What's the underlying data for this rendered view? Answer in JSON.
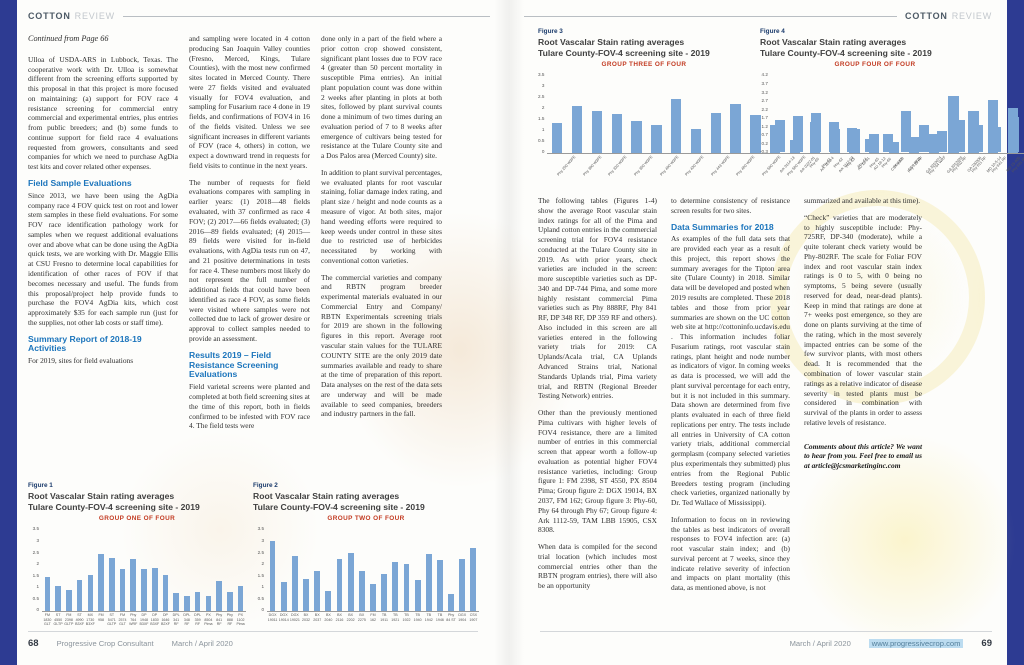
{
  "brand": {
    "bold": "COTTON",
    "light": "REVIEW"
  },
  "left_page": {
    "continued": "Continued from Page 66",
    "col1": {
      "p1": "Ulloa of USDA-ARS in Lubbock, Texas.  The cooperative work with Dr. Ulloa is somewhat different from the screening efforts supported by this proposal in that this project is more focused on maintaining: (a) support for FOV race 4 resistance screening for commercial entry commercial and experimental entries, plus entries from public breeders; and (b) some funds to continue support for field race 4 evaluations requested from growers, consultants and seed companies for which we need to purchase AgDia test kits and cover related other expenses.",
      "h1": "Field Sample Evaluations",
      "p2": "Since 2013, we have been using the AgDia company race 4 FOV quick test on root and lower stem samples in these field evaluations.  For some FOV race identification pathology work for samples when we request additional evaluations over and above what can be done using the AgDia quick tests, we are working with Dr. Maggie Ellis at CSU Fresno to determine local capabilities for identification of other races of FOV if that becomes necessary and useful. The funds from this proposal/project help provide funds to purchase the FOV4 AgDia kits, which cost approximately $35 for each sample run (just for the supplies, not other lab costs or staff time).",
      "h2": "Summary Report of 2018-19 Activities",
      "p3": "For 2019, sites for field evaluations"
    },
    "col2": {
      "p1": "and sampling were located in 4 cotton producing San Joaquin Valley counties  (Fresno, Merced, Kings, Tulare Counties), with the most new confirmed sites located in Merced County. There were 27 fields visited and evaluated visually for FOV4 evaluation, and sampling for Fusarium race 4 done in 19 fields, and confirmations of FOV4 in 16 of the fields visited. Unless we see significant increases in different variants of FOV (race 4, others) in cotton, we expect a downward trend in requests for field visits to continue in the next years.",
      "p2": "The number of requests for field evaluations compares with sampling in earlier years: (1) 2018—48 fields evaluated, with 37 confirmed as race 4 FOV; (2) 2017—66 fields evaluated; (3) 2016—89 fields evaluated; (4) 2015—89 fields were visited for in-field evaluations, with AgDia tests run on 47, and 21 positive determinations in tests for race 4.  These numbers most likely do not represent the full number of additional fields that could have been identified as race 4 FOV, as some fields were visited where samples were not collected due to lack of grower desire or approval to collect samples needed to provide an assessment.",
      "h1": "Results 2019 – Field Resistance Screening Evaluations",
      "p3": "Field varietal screens were planted and completed at both field screening sites at the time of this report, both in fields confirmed to be infested with FOV race 4.  The field tests were"
    },
    "col3": {
      "p1": "done only in a part of the field where a prior cotton crop showed consistent, significant plant losses due to FOV race 4 (greater than 50 percent mortality in susceptible Pima entries). An initial plant population count was done within 2 weeks after planting in plots at both sites, followed by plant survival counts done a minimum of two times during an evaluation period of 7 to 8 weeks after emergence of cultivars being tested for resistance at the Tulare County site and a Dos Palos area (Merced County) site.",
      "p2": "In addition to plant survival percentages, we evaluated plants for root vascular staining, foliar damage index rating, and plant size / height and node counts as a measure of vigor. At both sites, major hand weeding efforts were required to keep weeds under control in these sites due to restricted use of herbicides necessitated by working with conventional cotton varieties.",
      "p3": "The commercial varieties and company and RBTN program breeder experimental materials evaluated in our Commercial Entry and Company/ RBTN Experimentals screening trials for 2019 are shown in the following figures in this report.  Average root vascular stain values for the TULARE COUNTY SITE are the only 2019 date summaries available and ready to share at the time of preparation of this report. Data analyses on the rest of the data sets are underway and will be made available to seed companies, breeders and industry partners in the fall."
    },
    "footer": {
      "page": "68",
      "magazine": "Progressive Crop Consultant",
      "date": "March / April 2020"
    }
  },
  "right_page": {
    "col1": {
      "p1": "The following tables (Figures 1-4) show the average Root vascular stain index ratings for all of the Pima and Upland cotton entries in the commercial screening trial for FOV4 resistance conducted at the Tulare County site in 2019.  As with prior years, check varieties are included in the screen: more susceptible varieties such as DP-340 and DP-744 Pima, and some more highly resistant commercial Pima varieties such as Phy 888RF, Phy 841 RF, DP 348 RF, DP 359 RF and others). Also included in this screen are all varieties entered in the following variety trials for 2019:  CA Uplands/Acala trial, CA Uplands Advanced Strains trial, National Standards Uplands trial, Pima variety trial, and RBTN (Regional Breeder Testing Network) entries.",
      "p2": "Other than the previously mentioned Pima cultivars with higher levels of FOV4 resistance, there are a limited number of entries in this commercial screen that appear worth a follow-up evaluation as potential higher FOV4 resistance varieties, including:  Group figure 1: FM 2398, ST 4550, PX 8504 Pima; Group figure 2: DGX 19014, BX 2037, FM 162; Group figure 3: Phy-60, Phy 64 through Phy 67; Group figure 4: Ark 1112-59, TAM LBB 15905, CSX 8308.",
      "p3": "When data is compiled for the second trial location (which includes most commercial entries other than the RBTN program entries), there will also be an opportunity"
    },
    "col2": {
      "p1": "to determine consistency of resistance screen results for two sites.",
      "h1": "Data Summaries for 2018",
      "p2": "As examples of the full data sets that are provided each year as a result of this project, this report shows the summary averages for the Tipton area site (Tulare County) in 2018. Similar data will be developed and posted when 2019 results are completed.  These 2018 tables and those from prior year summaries are shown on the UC cotton web site at http://cottoninfo.ucdavis.edu .  This information includes foliar Fusarium ratings, root vascular stain ratings, plant height and node number as indicators of vigor.  In coming weeks as data is processed, we will add the plant survival percentage for each entry, but it is not included in this summary. Data shown are determined from five plants evaluated in each of three field replications per entry.  The tests include all entries in University of CA cotton variety trials, additional commercial germplasm (company selected varieties plus experimentals they submitted) plus entries from the Regional Public Breeders testing program (including check varieties, organized nationally by Dr. Ted Wallace of Mississippi).",
      "p3": "Information to focus on in reviewing the tables as best indicators of overall responses to FOV4 infection are: (a) root vascular stain index; and (b) survival percent at 7 weeks, since they indicate relative severity of infection and impacts on plant mortality (this data, as mentioned above, is not"
    },
    "col3": {
      "p1": "summarized and available at this time).",
      "p2": "“Check” varieties that are moderately to highly susceptible include: Phy-725RF, DP-340 (moderate), while a quite tolerant check variety would be Phy-802RF.  The scale for Foliar FOV index and root vascular stain index ratings is 0 to 5, with 0 being no symptoms, 5 being severe (usually reserved for dead, near-dead plants).  Keep in mind that ratings are done at 7+ weeks post emergence, so they are done on plants surviving at the time of the rating, which in the most severely impacted entries  can be some of the few survivor plants, with most others dead. It is recommended that the combination of lower vascular stain ratings as a relative indicator of disease severity in tested plants must be considered in combination with survival of the plants in order to assess relative levels of resistance.",
      "note": "Comments about this article? We want to hear from you. Feel free to email us at article@jcsmarketinginc.com"
    },
    "footer": {
      "date": "March / April 2020",
      "url": "www.progressivecrop.com",
      "page": "69"
    }
  },
  "chart_data": [
    {
      "type": "bar",
      "figure_label": "Figure 1",
      "title": "Root Vascalar Stain rating averages",
      "subtitle": "Tulare County-FOV-4 screening site - 2019",
      "group_label": "GROUP ONE OF FOUR",
      "ylim": [
        0,
        3.5
      ],
      "yticks": [
        "3.5",
        "3",
        "2.5",
        "2",
        "1.5",
        "1",
        "0.5",
        "0"
      ],
      "label_orientation": "horizontal",
      "categories": [
        "FM 1830 GLT",
        "ST 4550 GLTP",
        "FM 2398 GLTP",
        "ST 4990 B3XF",
        "MX 1730 B3XF",
        "FM 958",
        "ST 5471 GLTP",
        "FM 2574 GLT",
        "Phy 764 WRF",
        "DP 1948 B3XF",
        "DP 1830 B3XF",
        "DP 1646 B2XF",
        "DPL 341 RF",
        "DPL 348 RF",
        "DPL 359 RF",
        "PX 8504 Pima",
        "Phy 841 RF",
        "Phy 888 RF",
        "PX 1102 Pima"
      ],
      "values": [
        1.4,
        1.05,
        0.9,
        1.3,
        1.5,
        2.35,
        2.2,
        1.75,
        2.15,
        1.75,
        1.8,
        1.5,
        0.75,
        0.65,
        0.8,
        0.65,
        1.25,
        0.8,
        1.05
      ]
    },
    {
      "type": "bar",
      "figure_label": "Figure 2",
      "title": "Root Vascalar Stain rating averages",
      "subtitle": "Tulare County-FOV-4 screening site - 2019",
      "group_label": "GROUP TWO OF FOUR",
      "ylim": [
        0,
        3.5
      ],
      "yticks": [
        "3.5",
        "3",
        "2.5",
        "2",
        "1.5",
        "1",
        "0.5",
        "0"
      ],
      "label_orientation": "horizontal",
      "categories": [
        "DGX 19011",
        "DGX 19014",
        "DGX 19021",
        "BX 2032",
        "BX 2037",
        "BX 2040",
        "BX 2116",
        "BX 2202",
        "BX 2275",
        "FM 162",
        "TB 1911",
        "TB 1921",
        "TB 1922",
        "TB 1940",
        "TB 1942",
        "TB 1946",
        "Phy 84 ST",
        "DGX 1904",
        "CSX 1907"
      ],
      "values": [
        2.9,
        1.2,
        2.3,
        1.35,
        1.65,
        0.85,
        2.15,
        2.4,
        1.65,
        1.15,
        1.55,
        2.05,
        1.95,
        1.3,
        2.35,
        2.1,
        0.7,
        2.15,
        2.6
      ]
    },
    {
      "type": "bar",
      "figure_label": "Figure 3",
      "title": "Root Vascalar Stain rating averages",
      "subtitle": "Tulare County-FOV-4 screening site - 2019",
      "group_label": "GROUP THREE OF FOUR",
      "ylim": [
        0,
        3.5
      ],
      "yticks": [
        "3.5",
        "3",
        "2.5",
        "2",
        "1.5",
        "1",
        "0.5",
        "0"
      ],
      "label_orientation": "diagonal",
      "categories": [
        "Phy 250 W3FE",
        "Phy 300 W3FE",
        "Phy 320 W3FE",
        "Phy 350 W3FE",
        "Phy 400 W3FE",
        "Phy 430 W3FE",
        "Phy 443 W3FE",
        "Phy 480 W3FE",
        "Phy 500 W3FE",
        "Phy 580 W3FE",
        "Phy-60",
        "Phy-61",
        "Phy-62",
        "Phy-63",
        "Phy-64",
        "Phy-65",
        "Phy-66",
        "Phy-67",
        "Phy 725 RF",
        "Phy 764 WRF",
        "Phy 802 RF",
        "Phy 811 RF",
        "Phy 841 RF",
        "Phy 881 RF",
        "Phy 888 RF"
      ],
      "values": [
        1.3,
        2.05,
        1.85,
        1.7,
        1.4,
        1.25,
        2.35,
        1.05,
        1.75,
        2.15,
        1.65,
        1.25,
        0.6,
        1.35,
        1.05,
        1.05,
        0.85,
        0.5,
        0.7,
        0.85,
        2.5,
        1.85,
        2.3,
        1.95,
        2.1
      ]
    },
    {
      "type": "bar",
      "figure_label": "Figure 4",
      "title": "Root Vascalar Stain rating averages",
      "subtitle": "Tulare County-FOV-4 screening site - 2019",
      "group_label": "GROUP FOUR OF FOUR",
      "ylim": [
        -0.3,
        4.2
      ],
      "yticks": [
        "4.2",
        "3.7",
        "3.2",
        "2.7",
        "2.2",
        "1.7",
        "1.2",
        "0.7",
        "0.2",
        "-0.3"
      ],
      "label_orientation": "diagonal",
      "categories": [
        "Ark 0114-13",
        "Ark 0222-01",
        "Ark 1103-4",
        "Ark 1112-59",
        "AU 18-01",
        "AU 18-12",
        "CSX 8308",
        "CSX 8920",
        "GA 2010074",
        "GA 2012028",
        "GA 230308",
        "MD 10-5-14",
        "MD 15-005",
        "MS 164-B2",
        "NC 11-2100",
        "NM 1512",
        "OA 322",
        "OK 5021",
        "TAM LBB 15905",
        "TAM 16-44-08",
        "TAM 17-33-20",
        "UA 107",
        "UA 222",
        "UA 48",
        "UGA 117",
        "VA 19-22",
        "DP 340 Pima",
        "DP 744 Pima",
        "SJ-2"
      ],
      "values": [
        1.8,
        2.0,
        2.2,
        1.7,
        1.35,
        0.75,
        1.0,
        2.3,
        1.5,
        1.2,
        1.8,
        1.5,
        1.4,
        1.95,
        1.75,
        1.0,
        1.3,
        1.65,
        1.95,
        1.6,
        1.3,
        2.75,
        1.55,
        2.55,
        2.6,
        2.05,
        2.2,
        3.85,
        1.0
      ]
    }
  ]
}
